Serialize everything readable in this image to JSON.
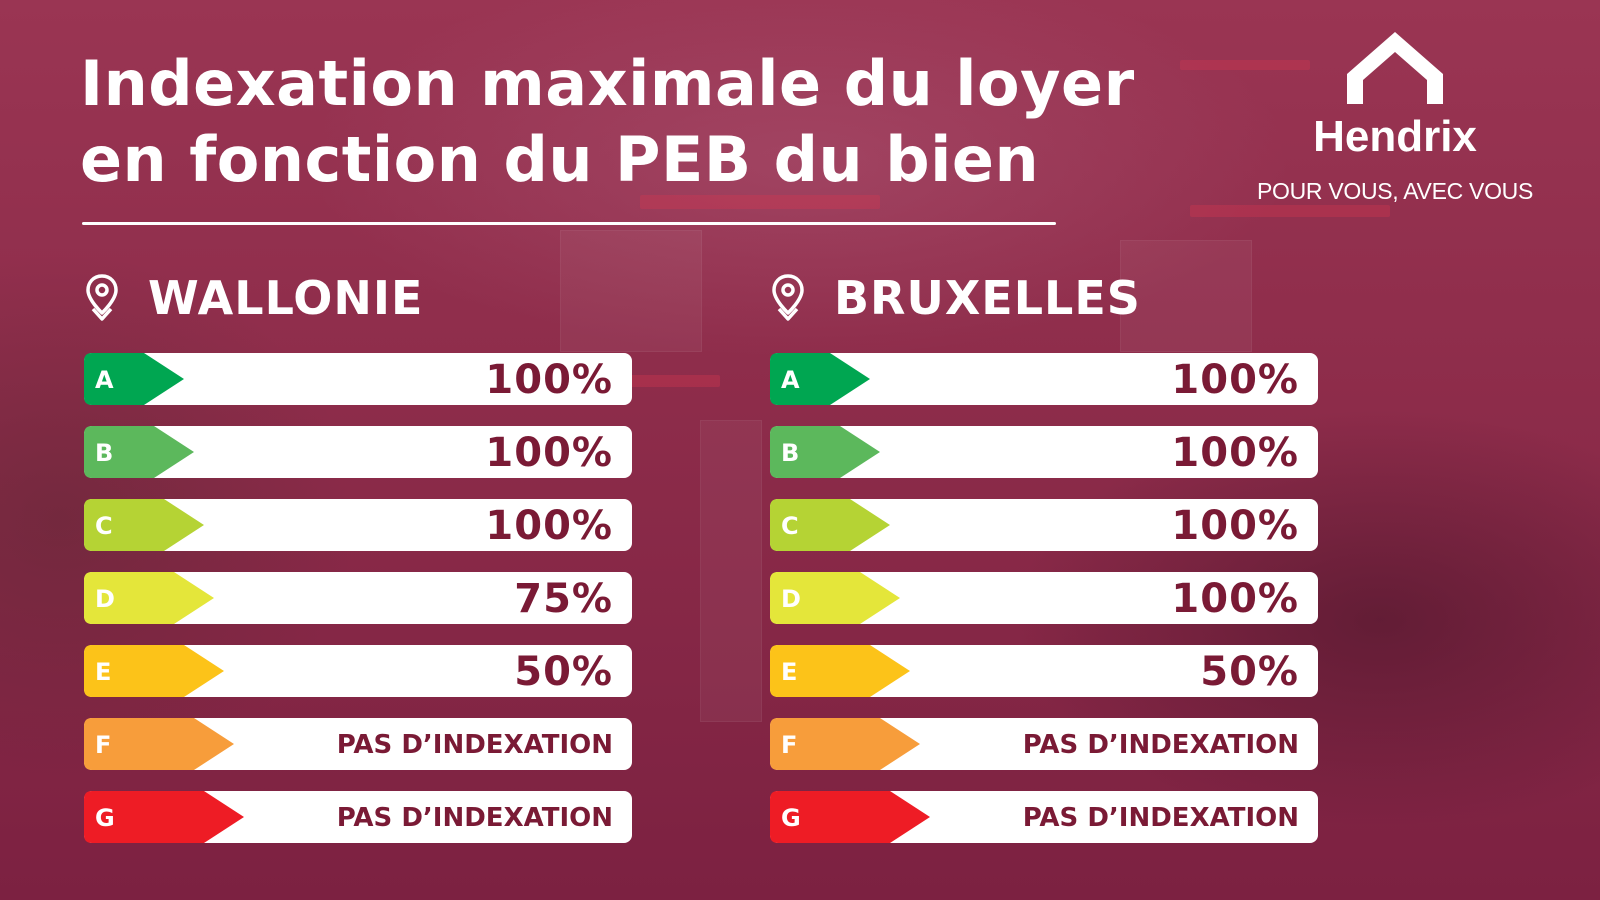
{
  "title": {
    "line1": "Indexation maximale du loyer",
    "line2": "en fonction du PEB du bien"
  },
  "brand": {
    "name": "Hendrix",
    "tagline": "POUR VOUS, AVEC VOUS",
    "icon": "house-roof-icon"
  },
  "regions": [
    {
      "name": "WALLONIE",
      "icon": "map-pin-icon",
      "ratings": [
        {
          "label": "A",
          "value": "100%",
          "color": "#00a651"
        },
        {
          "label": "B",
          "value": "100%",
          "color": "#5cb85c"
        },
        {
          "label": "C",
          "value": "100%",
          "color": "#b5d334"
        },
        {
          "label": "D",
          "value": "75%",
          "color": "#e4e63a"
        },
        {
          "label": "E",
          "value": "50%",
          "color": "#fcc319"
        },
        {
          "label": "F",
          "value": "PAS D’INDEXATION",
          "color": "#f79d3b"
        },
        {
          "label": "G",
          "value": "PAS D’INDEXATION",
          "color": "#ee1c25"
        }
      ]
    },
    {
      "name": "BRUXELLES",
      "icon": "map-pin-icon",
      "ratings": [
        {
          "label": "A",
          "value": "100%",
          "color": "#00a651"
        },
        {
          "label": "B",
          "value": "100%",
          "color": "#5cb85c"
        },
        {
          "label": "C",
          "value": "100%",
          "color": "#b5d334"
        },
        {
          "label": "D",
          "value": "100%",
          "color": "#e4e63a"
        },
        {
          "label": "E",
          "value": "50%",
          "color": "#fcc319"
        },
        {
          "label": "F",
          "value": "PAS D’INDEXATION",
          "color": "#f79d3b"
        },
        {
          "label": "G",
          "value": "PAS D’INDEXATION",
          "color": "#ee1c25"
        }
      ]
    }
  ],
  "colors": {
    "background": "#8e2a48",
    "value_text": "#7a1a35",
    "text": "#ffffff"
  }
}
